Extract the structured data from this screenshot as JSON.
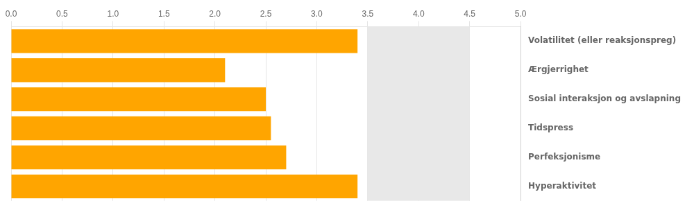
{
  "chart_data": {
    "type": "bar",
    "orientation": "horizontal",
    "categories": [
      "Hyperaktivitet",
      "Perfeksjonisme",
      "Tidspress",
      "Sosial interaksjon og avslapning",
      "Ærgjerrighet",
      "Volatilitet (eller reaksjonspreg)"
    ],
    "values": [
      3.4,
      2.7,
      2.55,
      2.5,
      2.1,
      3.4
    ],
    "color": "#FFA500",
    "xlim": [
      0.0,
      5.0
    ],
    "xticks": [
      {
        "value": 0,
        "label": "0.0"
      },
      0.5,
      {
        "value": 1,
        "label": "1.0"
      },
      1.5,
      {
        "value": 2,
        "label": "2.0"
      },
      2.5,
      {
        "value": 3,
        "label": "3.0"
      },
      3.5,
      {
        "value": 4,
        "label": "4.0"
      },
      4.5,
      {
        "value": 5,
        "label": "5.0"
      }
    ],
    "grid": true,
    "shading": {
      "start": 3.5,
      "end": 4.5,
      "color": "#e8e8e8"
    }
  }
}
